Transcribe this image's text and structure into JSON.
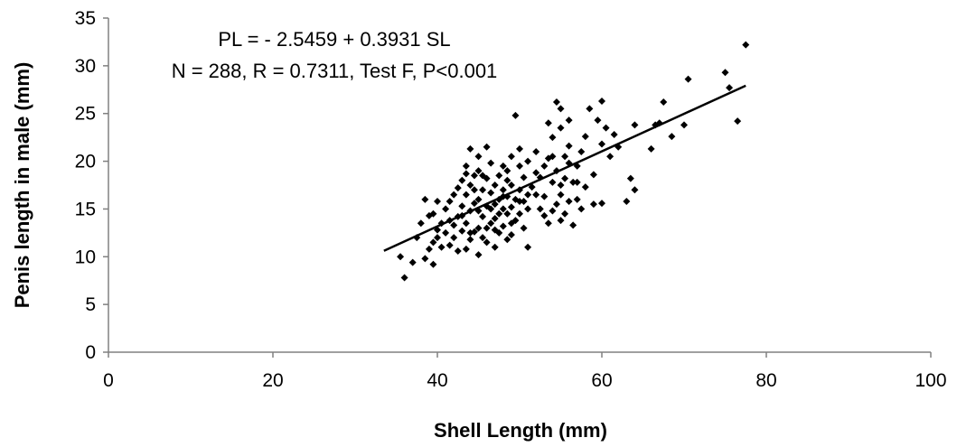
{
  "chart_data": {
    "type": "scatter",
    "title": "",
    "xlabel": "Shell Length (mm)",
    "ylabel": "Penis length in male (mm)",
    "xlim": [
      0,
      100
    ],
    "ylim": [
      0,
      35
    ],
    "xticks": [
      0,
      20,
      40,
      60,
      80,
      100
    ],
    "yticks": [
      0,
      5,
      10,
      15,
      20,
      25,
      30,
      35
    ],
    "grid": false,
    "legend": "none",
    "annotations": [
      "PL = - 2.5459 + 0.3931 SL",
      "N = 288, R = 0.7311, Test F, P<0.001"
    ],
    "marker_color": "#000000",
    "trendline": {
      "intercept": -2.5459,
      "slope": 0.3931,
      "x_range": [
        33.5,
        77.5
      ]
    },
    "points": [
      [
        36.0,
        7.8
      ],
      [
        35.5,
        10.0
      ],
      [
        37.0,
        9.4
      ],
      [
        38.5,
        9.8
      ],
      [
        39.5,
        9.2
      ],
      [
        39.0,
        10.8
      ],
      [
        39.5,
        11.5
      ],
      [
        38.5,
        16.0
      ],
      [
        39.5,
        14.5
      ],
      [
        40.0,
        12.8
      ],
      [
        40.0,
        15.8
      ],
      [
        40.5,
        13.5
      ],
      [
        40.5,
        11.0
      ],
      [
        41.0,
        12.5
      ],
      [
        41.5,
        11.2
      ],
      [
        41.0,
        15.0
      ],
      [
        41.5,
        13.8
      ],
      [
        42.0,
        12.0
      ],
      [
        42.0,
        16.5
      ],
      [
        42.5,
        14.2
      ],
      [
        42.5,
        10.6
      ],
      [
        43.0,
        12.7
      ],
      [
        43.0,
        15.3
      ],
      [
        43.0,
        18.0
      ],
      [
        43.5,
        10.8
      ],
      [
        43.5,
        13.5
      ],
      [
        43.5,
        16.5
      ],
      [
        43.5,
        19.5
      ],
      [
        44.0,
        11.8
      ],
      [
        44.0,
        14.8
      ],
      [
        44.0,
        17.5
      ],
      [
        44.0,
        21.3
      ],
      [
        44.5,
        12.6
      ],
      [
        44.5,
        15.6
      ],
      [
        44.5,
        18.5
      ],
      [
        45.0,
        10.2
      ],
      [
        45.0,
        13.0
      ],
      [
        45.0,
        16.0
      ],
      [
        45.0,
        19.0
      ],
      [
        45.0,
        20.5
      ],
      [
        45.5,
        14.2
      ],
      [
        45.5,
        17.0
      ],
      [
        45.5,
        12.0
      ],
      [
        46.0,
        11.5
      ],
      [
        46.0,
        15.3
      ],
      [
        46.0,
        18.2
      ],
      [
        46.0,
        21.5
      ],
      [
        46.5,
        13.5
      ],
      [
        46.5,
        16.7
      ],
      [
        46.5,
        19.8
      ],
      [
        47.0,
        11.0
      ],
      [
        47.0,
        14.0
      ],
      [
        47.0,
        17.5
      ],
      [
        47.0,
        15.5
      ],
      [
        47.5,
        12.5
      ],
      [
        47.5,
        16.0
      ],
      [
        47.5,
        18.5
      ],
      [
        48.0,
        13.2
      ],
      [
        48.0,
        15.0
      ],
      [
        48.0,
        17.0
      ],
      [
        48.0,
        19.5
      ],
      [
        48.5,
        11.8
      ],
      [
        48.5,
        14.5
      ],
      [
        48.5,
        16.3
      ],
      [
        48.5,
        18.0
      ],
      [
        49.0,
        12.3
      ],
      [
        49.0,
        15.2
      ],
      [
        49.0,
        17.5
      ],
      [
        49.0,
        20.5
      ],
      [
        49.5,
        13.8
      ],
      [
        49.5,
        16.0
      ],
      [
        49.5,
        24.8
      ],
      [
        50.0,
        14.5
      ],
      [
        50.0,
        17.0
      ],
      [
        50.0,
        19.5
      ],
      [
        50.0,
        21.3
      ],
      [
        50.5,
        15.8
      ],
      [
        50.5,
        18.3
      ],
      [
        51.0,
        11.0
      ],
      [
        51.0,
        16.5
      ],
      [
        51.0,
        20.0
      ],
      [
        51.5,
        17.3
      ],
      [
        52.0,
        18.8
      ],
      [
        52.0,
        21.0
      ],
      [
        52.5,
        15.0
      ],
      [
        53.0,
        16.3
      ],
      [
        53.0,
        19.5
      ],
      [
        53.5,
        13.5
      ],
      [
        53.5,
        20.3
      ],
      [
        53.5,
        24.0
      ],
      [
        54.0,
        14.8
      ],
      [
        54.0,
        17.8
      ],
      [
        54.0,
        22.5
      ],
      [
        54.5,
        26.2
      ],
      [
        54.5,
        19.0
      ],
      [
        54.5,
        15.5
      ],
      [
        55.0,
        13.8
      ],
      [
        55.0,
        16.5
      ],
      [
        55.0,
        23.5
      ],
      [
        55.0,
        25.5
      ],
      [
        55.5,
        14.5
      ],
      [
        55.5,
        18.2
      ],
      [
        55.5,
        20.5
      ],
      [
        56.0,
        15.8
      ],
      [
        56.0,
        21.6
      ],
      [
        56.0,
        24.3
      ],
      [
        56.5,
        13.3
      ],
      [
        56.5,
        17.8
      ],
      [
        57.0,
        16.0
      ],
      [
        57.0,
        19.5
      ],
      [
        57.5,
        15.0
      ],
      [
        57.5,
        21.0
      ],
      [
        58.0,
        17.3
      ],
      [
        58.0,
        22.6
      ],
      [
        58.5,
        25.5
      ],
      [
        59.0,
        15.5
      ],
      [
        59.0,
        18.6
      ],
      [
        59.5,
        24.3
      ],
      [
        60.0,
        26.3
      ],
      [
        60.0,
        15.6
      ],
      [
        60.0,
        21.8
      ],
      [
        60.5,
        23.5
      ],
      [
        61.0,
        20.5
      ],
      [
        61.5,
        22.8
      ],
      [
        62.0,
        21.5
      ],
      [
        63.0,
        15.8
      ],
      [
        63.5,
        18.2
      ],
      [
        64.0,
        17.0
      ],
      [
        64.0,
        23.8
      ],
      [
        66.0,
        21.3
      ],
      [
        66.5,
        23.8
      ],
      [
        67.0,
        24.0
      ],
      [
        67.5,
        26.2
      ],
      [
        68.5,
        22.6
      ],
      [
        70.0,
        23.8
      ],
      [
        70.5,
        28.6
      ],
      [
        75.0,
        29.3
      ],
      [
        75.5,
        27.7
      ],
      [
        76.5,
        24.2
      ],
      [
        77.5,
        32.2
      ],
      [
        37.5,
        12.0
      ],
      [
        38.0,
        13.5
      ],
      [
        39.0,
        14.3
      ],
      [
        40.0,
        12.0
      ],
      [
        41.5,
        15.8
      ],
      [
        42.0,
        13.3
      ],
      [
        42.5,
        17.2
      ],
      [
        43.0,
        14.3
      ],
      [
        43.5,
        18.7
      ],
      [
        44.0,
        12.5
      ],
      [
        44.5,
        17.0
      ],
      [
        45.0,
        14.8
      ],
      [
        45.5,
        18.5
      ],
      [
        46.0,
        13.0
      ],
      [
        46.5,
        15.0
      ],
      [
        47.0,
        12.8
      ],
      [
        47.5,
        14.5
      ],
      [
        48.0,
        16.3
      ],
      [
        48.5,
        19.0
      ],
      [
        49.0,
        13.5
      ],
      [
        50.0,
        15.8
      ],
      [
        50.5,
        13.0
      ],
      [
        51.0,
        15.0
      ],
      [
        52.0,
        16.5
      ],
      [
        52.5,
        18.3
      ],
      [
        53.0,
        14.3
      ],
      [
        54.0,
        20.5
      ],
      [
        55.0,
        17.5
      ],
      [
        56.0,
        19.8
      ],
      [
        57.0,
        17.8
      ]
    ]
  }
}
